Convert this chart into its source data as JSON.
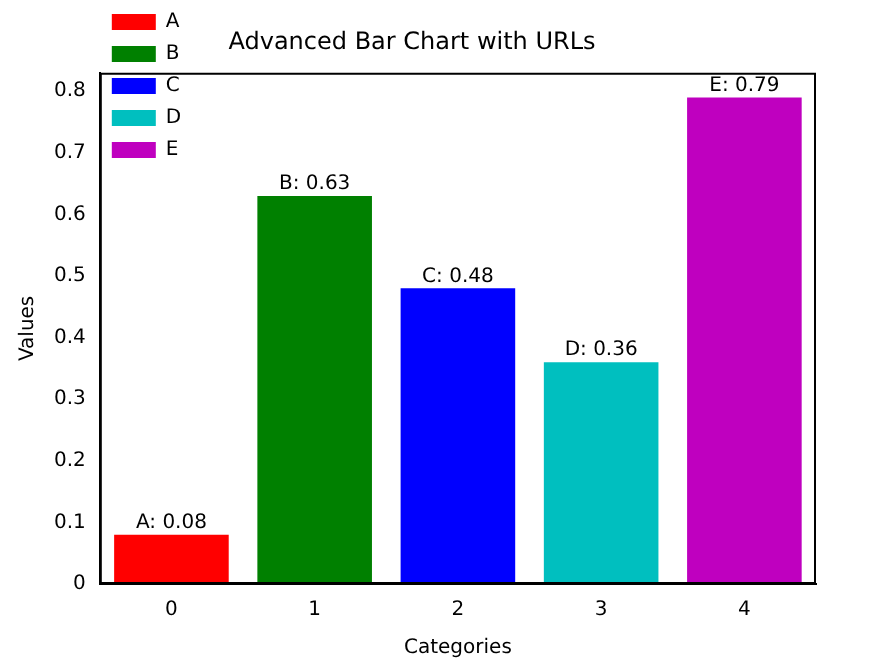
{
  "chart_data": {
    "type": "bar",
    "title": "Advanced Bar Chart with URLs",
    "xlabel": "Categories",
    "ylabel": "Values",
    "categories": [
      "0",
      "1",
      "2",
      "3",
      "4"
    ],
    "series": [
      {
        "name": "A",
        "color": "#ff0000",
        "values": [
          0.08,
          null,
          null,
          null,
          null
        ],
        "value_labels": [
          "A: 0.08",
          null,
          null,
          null,
          null
        ]
      },
      {
        "name": "B",
        "color": "#008000",
        "values": [
          null,
          0.63,
          null,
          null,
          null
        ],
        "value_labels": [
          null,
          "B: 0.63",
          null,
          null,
          null
        ]
      },
      {
        "name": "C",
        "color": "#0000ff",
        "values": [
          null,
          null,
          0.48,
          null,
          null
        ],
        "value_labels": [
          null,
          null,
          "C: 0.48",
          null,
          null
        ]
      },
      {
        "name": "D",
        "color": "#00bfbf",
        "values": [
          null,
          null,
          null,
          0.36,
          null
        ],
        "value_labels": [
          null,
          null,
          null,
          "D: 0.36",
          null
        ]
      },
      {
        "name": "E",
        "color": "#bf00bf",
        "values": [
          null,
          null,
          null,
          null,
          0.79
        ],
        "value_labels": [
          null,
          null,
          null,
          null,
          "E: 0.79"
        ]
      }
    ],
    "ylim": [
      0,
      0.83
    ],
    "yticks": [
      0,
      0.1,
      0.2,
      0.3,
      0.4,
      0.5,
      0.6,
      0.7,
      0.8
    ],
    "grid": false,
    "legend": "top left"
  }
}
